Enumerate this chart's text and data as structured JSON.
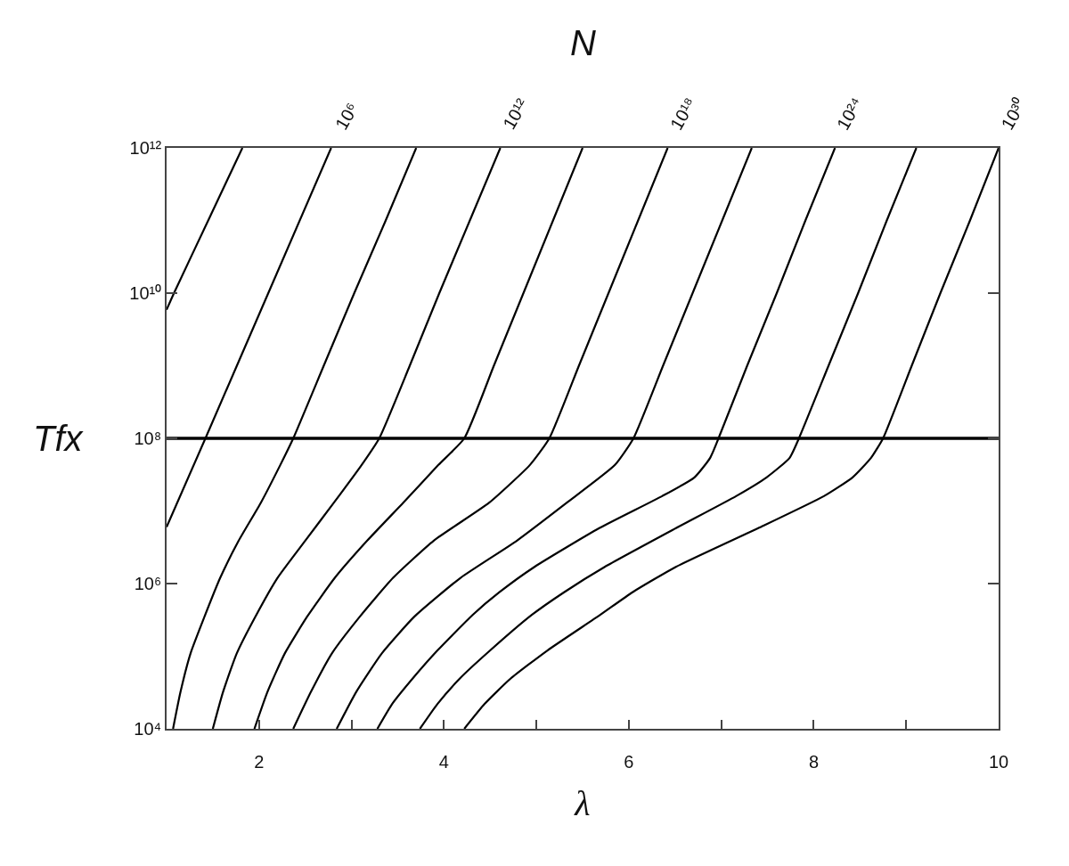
{
  "chart_data": {
    "type": "line",
    "xlabel": "λ",
    "ylabel": "Tfx",
    "annotations": [
      "N",
      {
        "text": "10⁶",
        "x": 2.78,
        "y": 1000000000000.0
      },
      {
        "text": "10¹²",
        "x": 4.61,
        "y": 1000000000000.0
      },
      {
        "text": "10¹⁸",
        "x": 6.42,
        "y": 1000000000000.0
      },
      {
        "text": "10²⁴",
        "x": 8.23,
        "y": 1000000000000.0
      },
      {
        "text": "10³⁰",
        "x": 10.0,
        "y": 1000000000000.0
      }
    ],
    "xlim": [
      1,
      10
    ],
    "xticks": [
      2,
      {
        "value": 3,
        "label": null
      },
      4,
      {
        "value": 5,
        "label": null
      },
      6,
      {
        "value": 7,
        "label": null
      },
      8,
      {
        "value": 9,
        "label": null
      },
      10
    ],
    "ylim": [
      10000,
      1000000000000.0
    ],
    "yticks": [
      {
        "value": 10000,
        "label": "10⁴"
      },
      {
        "value": 1000000,
        "label": "10⁶"
      },
      {
        "value": 100000000,
        "label": "10⁸"
      },
      {
        "value": 10000000000.0,
        "label": "10¹⁰"
      },
      {
        "value": 1000000000000.0,
        "label": "10¹²"
      }
    ],
    "log": "y",
    "ref_lines": [
      {
        "axis": "y",
        "value": 100000000,
        "color": "#000000"
      }
    ],
    "series": [
      {
        "color": "#000000",
        "x": [
          1.0,
          1.08,
          1.45,
          1.82
        ],
        "values": [
          5900000000.0,
          10000000000.0,
          100000000000.0,
          1000000000000.0
        ]
      },
      {
        "color": "#000000",
        "x": [
          1.0,
          1.42,
          2.1,
          2.78
        ],
        "values": [
          6000000.0,
          100000000.0,
          10000000000.0,
          1000000000000.0
        ]
      },
      {
        "color": "#000000",
        "x": [
          1.07,
          1.15,
          1.26,
          1.41,
          1.58,
          1.78,
          2.02,
          2.23,
          2.37,
          2.7,
          3.03,
          3.37,
          3.7
        ],
        "values": [
          10000.0,
          32000.0,
          110000.0,
          350000.0,
          1200000.0,
          3900000.0,
          13000000.0,
          43000000.0,
          100000000.0,
          1000000000.0,
          10000000000.0,
          100000000000.0,
          1000000000000.0
        ]
      },
      {
        "color": "#000000",
        "x": [
          1.5,
          1.61,
          1.76,
          1.96,
          2.2,
          2.5,
          2.81,
          3.11,
          3.3,
          3.63,
          3.95,
          4.28,
          4.61
        ],
        "values": [
          10000.0,
          32000.0,
          110000.0,
          350000.0,
          1200000.0,
          3900000.0,
          13000000.0,
          43000000.0,
          100000000.0,
          1000000000.0,
          10000000000.0,
          100000000000.0,
          1000000000000.0
        ]
      },
      {
        "color": "#000000",
        "x": [
          1.95,
          2.09,
          2.28,
          2.52,
          2.82,
          3.17,
          3.56,
          3.94,
          4.22,
          4.54,
          4.86,
          5.18,
          5.5
        ],
        "values": [
          10000.0,
          32000.0,
          110000.0,
          350000.0,
          1200000.0,
          3900000.0,
          13000000.0,
          43000000.0,
          100000000.0,
          1000000000.0,
          10000000000.0,
          100000000000.0,
          1000000000000.0
        ]
      },
      {
        "color": "#000000",
        "x": [
          2.37,
          2.56,
          2.79,
          3.09,
          3.45,
          3.89,
          4.49,
          4.93,
          5.14,
          5.46,
          5.78,
          6.1,
          6.42
        ],
        "values": [
          10000.0,
          32000.0,
          110000.0,
          350000.0,
          1200000.0,
          3900000.0,
          13000000.0,
          43000000.0,
          100000000.0,
          1000000000.0,
          10000000000.0,
          100000000000.0,
          1000000000000.0
        ]
      },
      {
        "color": "#000000",
        "x": [
          2.84,
          3.05,
          3.33,
          3.68,
          4.18,
          4.79,
          5.33,
          5.85,
          6.05,
          6.37,
          6.69,
          7.01,
          7.33
        ],
        "values": [
          10000.0,
          32000.0,
          110000.0,
          350000.0,
          1200000.0,
          3900000.0,
          13000000.0,
          43000000.0,
          100000000.0,
          1000000000.0,
          10000000000.0,
          100000000000.0,
          1000000000000.0
        ]
      },
      {
        "color": "#000000",
        "x": [
          3.28,
          3.44,
          3.66,
          3.93,
          4.31,
          4.6,
          4.98,
          5.68,
          6.36,
          6.71,
          6.88,
          6.97,
          7.28,
          7.6,
          7.91,
          8.23
        ],
        "values": [
          10000.0,
          22000.0,
          49000.0,
          120000.0,
          370000.0,
          760000.0,
          1700000.0,
          5800000.0,
          16000000.0,
          29000000.0,
          54000000.0,
          100000000.0,
          1000000000.0,
          10000000000.0,
          100000000000.0,
          1000000000000.0
        ]
      },
      {
        "color": "#000000",
        "x": [
          3.74,
          3.93,
          4.17,
          4.5,
          4.95,
          5.3,
          5.74,
          6.51,
          7.16,
          7.49,
          7.74,
          7.84,
          8.16,
          8.48,
          8.79,
          9.11
        ],
        "values": [
          10000.0,
          22000.0,
          49000.0,
          120000.0,
          370000.0,
          760000.0,
          1700000.0,
          5800000.0,
          16000000.0,
          29000000.0,
          54000000.0,
          100000000.0,
          1000000000.0,
          10000000000.0,
          100000000000.0,
          1000000000000.0
        ]
      },
      {
        "color": "#000000",
        "x": [
          4.22,
          4.44,
          4.72,
          5.12,
          5.69,
          6.04,
          6.51,
          7.4,
          8.11,
          8.42,
          8.62,
          8.75,
          9.06,
          9.37,
          9.69,
          10.0
        ],
        "values": [
          10000.0,
          22000.0,
          49000.0,
          120000.0,
          370000.0,
          760000.0,
          1700000.0,
          5800000.0,
          16000000.0,
          29000000.0,
          54000000.0,
          100000000.0,
          1000000000.0,
          10000000000.0,
          100000000000.0,
          1000000000000.0
        ]
      }
    ]
  }
}
